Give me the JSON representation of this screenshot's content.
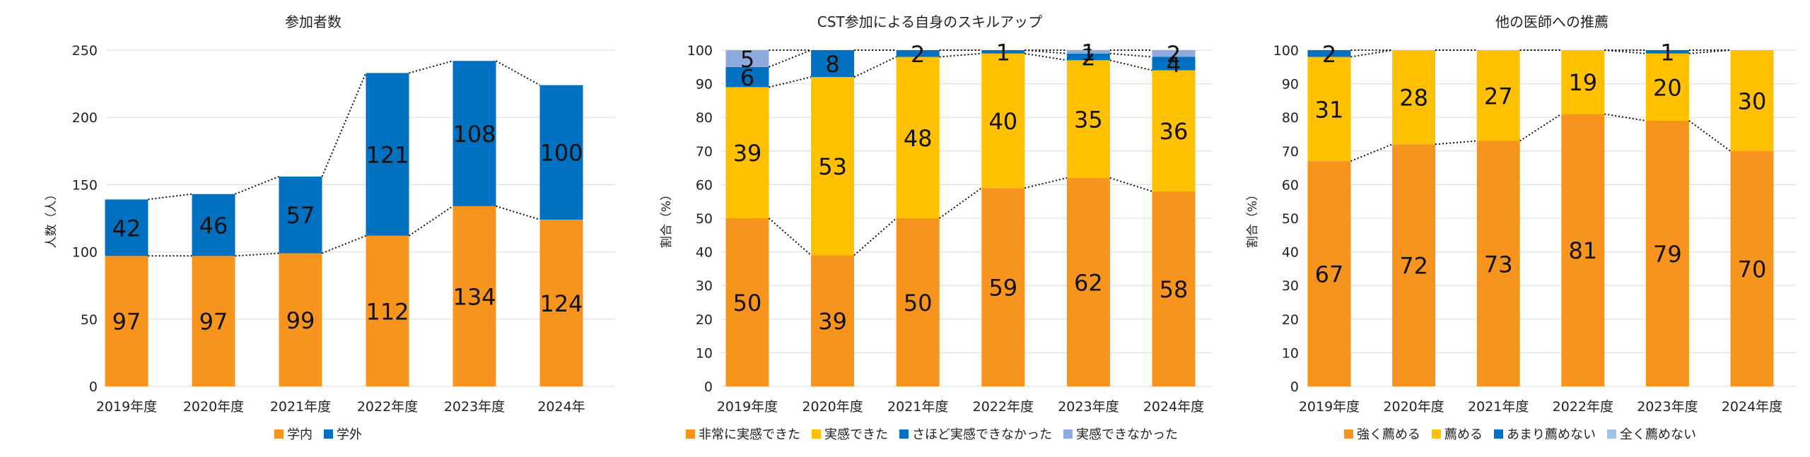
{
  "chart_data": [
    {
      "type": "bar",
      "stacked": true,
      "title": "参加者数",
      "ylabel": "人数（人）",
      "xlabel": "",
      "categories": [
        "2019年度",
        "2020年度",
        "2021年度",
        "2022年度",
        "2023年度",
        "2024年"
      ],
      "ylim": [
        0,
        250
      ],
      "yticks": [
        "0",
        "50",
        "100",
        "150",
        "200",
        "250"
      ],
      "grid": true,
      "legend_position": "bottom",
      "connector_lines": "dotted",
      "series": [
        {
          "name": "学内",
          "color": "#F7941D",
          "values": [
            97,
            97,
            99,
            112,
            134,
            124
          ]
        },
        {
          "name": "学外",
          "color": "#0070C0",
          "values": [
            42,
            46,
            57,
            121,
            108,
            100
          ]
        }
      ]
    },
    {
      "type": "bar",
      "stacked": true,
      "title": "CST参加による自身のスキルアップ",
      "ylabel": "割合（%）",
      "xlabel": "",
      "categories": [
        "2019年度",
        "2020年度",
        "2021年度",
        "2022年度",
        "2023年度",
        "2024年度"
      ],
      "ylim": [
        0,
        100
      ],
      "yticks": [
        "0",
        "10",
        "20",
        "30",
        "40",
        "50",
        "60",
        "70",
        "80",
        "90",
        "100"
      ],
      "grid": true,
      "legend_position": "bottom",
      "connector_lines": "dotted",
      "series": [
        {
          "name": "非常に実感できた",
          "color": "#F7941D",
          "values": [
            50,
            39,
            50,
            59,
            62,
            58
          ]
        },
        {
          "name": "実感できた",
          "color": "#FFC000",
          "values": [
            39,
            53,
            48,
            40,
            35,
            36
          ]
        },
        {
          "name": "さほど実感できなかった",
          "color": "#0070C0",
          "values": [
            6,
            8,
            2,
            1,
            2,
            4
          ]
        },
        {
          "name": "実感できなかった",
          "color": "#8FAADC",
          "values": [
            5,
            0,
            0,
            0,
            1,
            2
          ]
        }
      ]
    },
    {
      "type": "bar",
      "stacked": true,
      "title": "他の医師への推薦",
      "ylabel": "割合（%）",
      "xlabel": "",
      "categories": [
        "2019年度",
        "2020年度",
        "2021年度",
        "2022年度",
        "2023年度",
        "2024年度"
      ],
      "ylim": [
        0,
        100
      ],
      "yticks": [
        "0",
        "10",
        "20",
        "30",
        "40",
        "50",
        "60",
        "70",
        "80",
        "90",
        "100"
      ],
      "grid": true,
      "legend_position": "bottom",
      "connector_lines": "dotted",
      "series": [
        {
          "name": "強く薦める",
          "color": "#F7941D",
          "values": [
            67,
            72,
            73,
            81,
            79,
            70
          ]
        },
        {
          "name": "薦める",
          "color": "#FFC000",
          "values": [
            31,
            28,
            27,
            19,
            20,
            30
          ]
        },
        {
          "name": "あまり薦めない",
          "color": "#0070C0",
          "values": [
            2,
            0,
            0,
            0,
            1,
            0
          ]
        },
        {
          "name": "全く薦めない",
          "color": "#9DC3E6",
          "values": [
            0,
            0,
            0,
            0,
            0,
            0
          ]
        }
      ]
    }
  ]
}
